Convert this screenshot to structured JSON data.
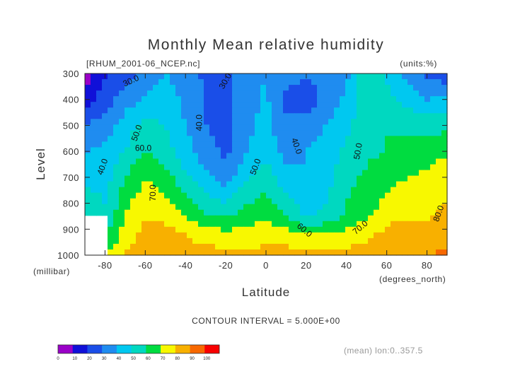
{
  "chart_data": {
    "type": "heatmap",
    "title": "Monthly Mean relative humidity",
    "file_label": "[RHUM_2001-06_NCEP.nc]",
    "units_label": "(units:%)",
    "ylabel": "Level",
    "ylabel_units": "(millibar)",
    "xlabel": "Latitude",
    "xlabel_units": "(degrees_north)",
    "contour_interval_text": "CONTOUR INTERVAL = 5.000E+00",
    "mean_note": "(mean) lon:0..357.5",
    "xlim": [
      -90,
      90
    ],
    "ylim": [
      1000,
      300
    ],
    "x_ticks": [
      -80,
      -60,
      -40,
      -20,
      0,
      20,
      40,
      60,
      80
    ],
    "x_tick_labels": [
      "-80",
      "-60",
      "-40",
      "-20",
      "0",
      "20",
      "40",
      "60",
      "80"
    ],
    "y_ticks": [
      300,
      400,
      500,
      600,
      700,
      800,
      900,
      1000
    ],
    "y_tick_labels": [
      "300",
      "400",
      "500",
      "600",
      "700",
      "800",
      "900",
      "1000"
    ],
    "grid": false,
    "latitudes": [
      -90,
      -80,
      -70,
      -60,
      -50,
      -40,
      -30,
      -20,
      -10,
      0,
      10,
      20,
      30,
      40,
      50,
      60,
      70,
      80,
      90
    ],
    "levels": [
      1000,
      925,
      850,
      700,
      600,
      500,
      400,
      300
    ],
    "values": [
      [
        null,
        68,
        82,
        87,
        86,
        85,
        84,
        83,
        82,
        82,
        84,
        83,
        82,
        83,
        85,
        88,
        89,
        90,
        92
      ],
      [
        null,
        58,
        75,
        84,
        84,
        80,
        76,
        74,
        76,
        78,
        76,
        72,
        73,
        74,
        78,
        84,
        86,
        85,
        87
      ],
      [
        62,
        52,
        70,
        80,
        78,
        70,
        62,
        58,
        64,
        68,
        60,
        48,
        52,
        62,
        68,
        76,
        79,
        79,
        82
      ],
      [
        45,
        46,
        60,
        70,
        64,
        52,
        42,
        35,
        48,
        55,
        44,
        40,
        46,
        56,
        62,
        66,
        70,
        73,
        77
      ],
      [
        40,
        42,
        50,
        60,
        54,
        44,
        34,
        28,
        40,
        46,
        37,
        40,
        45,
        52,
        58,
        60,
        62,
        65,
        68
      ],
      [
        30,
        35,
        45,
        54,
        50,
        40,
        30,
        27,
        36,
        44,
        32,
        34,
        40,
        48,
        56,
        60,
        58,
        56,
        58
      ],
      [
        15,
        25,
        35,
        42,
        45,
        38,
        28,
        26,
        35,
        42,
        27,
        24,
        34,
        42,
        58,
        54,
        46,
        40,
        44
      ],
      [
        5,
        18,
        25,
        32,
        40,
        36,
        28,
        28,
        35,
        40,
        35,
        32,
        30,
        38,
        57,
        48,
        38,
        28,
        22
      ]
    ],
    "contour_labels": [
      {
        "text": "30.0",
        "lat": -67,
        "level": 330,
        "angle": -25
      },
      {
        "text": "30.0",
        "lat": -20,
        "level": 330,
        "angle": -60
      },
      {
        "text": "40.0",
        "lat": -33,
        "level": 490,
        "angle": -90
      },
      {
        "text": "50.0",
        "lat": -64,
        "level": 530,
        "angle": -70
      },
      {
        "text": "60.0",
        "lat": -61,
        "level": 590,
        "angle": 0
      },
      {
        "text": "40.0",
        "lat": -81,
        "level": 660,
        "angle": -70
      },
      {
        "text": "70.0",
        "lat": -56,
        "level": 760,
        "angle": -90
      },
      {
        "text": "50.0",
        "lat": -5,
        "level": 660,
        "angle": -70
      },
      {
        "text": "40.0",
        "lat": 15,
        "level": 580,
        "angle": 70
      },
      {
        "text": "50.0",
        "lat": 46,
        "level": 600,
        "angle": -80
      },
      {
        "text": "60.0",
        "lat": 19,
        "level": 905,
        "angle": 40
      },
      {
        "text": "70.0",
        "lat": 47,
        "level": 895,
        "angle": -40
      },
      {
        "text": "80.0",
        "lat": 86,
        "level": 840,
        "angle": -70
      }
    ],
    "colorbar": {
      "boundaries": [
        0,
        10,
        20,
        30,
        40,
        50,
        60,
        70,
        80,
        90,
        100
      ],
      "labels": [
        "0",
        "10",
        "20",
        "30",
        "40",
        "50",
        "60",
        "70",
        "80",
        "90",
        "100"
      ],
      "colors": [
        "#9a00c8",
        "#1010d8",
        "#1a4ee8",
        "#1f8cf0",
        "#00c8f0",
        "#00d8c0",
        "#00dc40",
        "#f8f800",
        "#f8b000",
        "#f86800",
        "#f80000"
      ]
    }
  }
}
